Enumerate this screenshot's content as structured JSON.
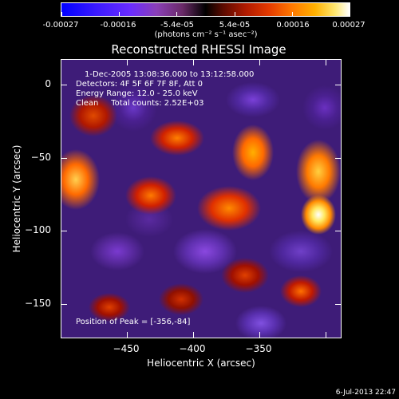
{
  "colorbar": {
    "ticks": [
      "-0.00027",
      "-0.00016",
      "-5.4e-05",
      "5.4e-05",
      "0.00016",
      "0.00027"
    ],
    "units": "(photons cm⁻² s⁻¹ asec⁻²)"
  },
  "title": "Reconstructed RHESSI Image",
  "info": {
    "time_range": "1-Dec-2005 13:08:36.000 to 13:12:58.000",
    "detectors": "Detectors: 4F 5F 6F 7F 8F, Att 0",
    "energy": "Energy Range: 12.0 - 25.0 keV",
    "clean": "Clean     Total counts: 2.52E+03",
    "peak": "Position of Peak = [-356,-84]"
  },
  "xaxis": {
    "title": "Heliocentric X (arcsec)",
    "ticks": [
      "−450",
      "−400",
      "−350"
    ]
  },
  "yaxis": {
    "title": "Heliocentric Y (arcsec)",
    "ticks": [
      "0",
      "−50",
      "−100",
      "−150"
    ]
  },
  "footer_date": "6-Jul-2013 22:47"
}
